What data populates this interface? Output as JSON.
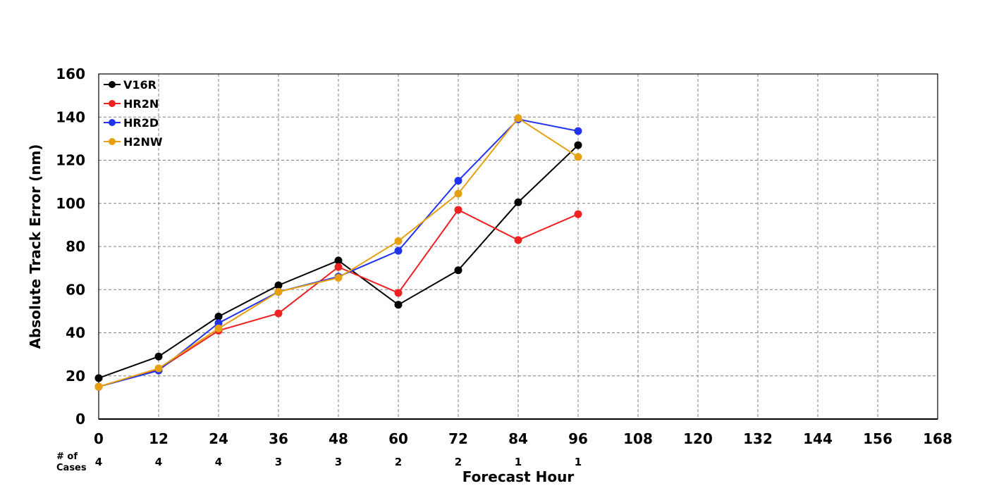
{
  "chart_data": {
    "type": "line",
    "xlabel": "Forecast Hour",
    "ylabel": "Absolute Track Error (nm)",
    "xlim": [
      0,
      168
    ],
    "ylim": [
      0,
      160
    ],
    "xticks": [
      0,
      12,
      24,
      36,
      48,
      60,
      72,
      84,
      96,
      108,
      120,
      132,
      144,
      156,
      168
    ],
    "yticks": [
      0,
      20,
      40,
      60,
      80,
      100,
      120,
      140,
      160
    ],
    "grid": true,
    "legend_position": "top-left",
    "cases_label": [
      "# of",
      "Cases"
    ],
    "cases": [
      {
        "x": 0,
        "n": "4"
      },
      {
        "x": 12,
        "n": "4"
      },
      {
        "x": 24,
        "n": "4"
      },
      {
        "x": 36,
        "n": "3"
      },
      {
        "x": 48,
        "n": "3"
      },
      {
        "x": 60,
        "n": "2"
      },
      {
        "x": 72,
        "n": "2"
      },
      {
        "x": 84,
        "n": "1"
      },
      {
        "x": 96,
        "n": "1"
      }
    ],
    "x": [
      0,
      12,
      24,
      36,
      48,
      60,
      72,
      84,
      96
    ],
    "series": [
      {
        "name": "V16R",
        "color": "#000000",
        "values": [
          19,
          29,
          47.5,
          62,
          73.5,
          53,
          69,
          100.5,
          127
        ]
      },
      {
        "name": "HR2N",
        "color": "#ee2222",
        "values": [
          15,
          23,
          41,
          49,
          70.5,
          58.5,
          97,
          83,
          95
        ]
      },
      {
        "name": "HR2D",
        "color": "#2233ee",
        "values": [
          15,
          22.5,
          44.5,
          59,
          66,
          78,
          110.5,
          139,
          133.5
        ]
      },
      {
        "name": "H2NW",
        "color": "#e6a010",
        "values": [
          15,
          23.5,
          42,
          59,
          65.5,
          82.5,
          104.5,
          139.5,
          121.5
        ]
      }
    ]
  }
}
